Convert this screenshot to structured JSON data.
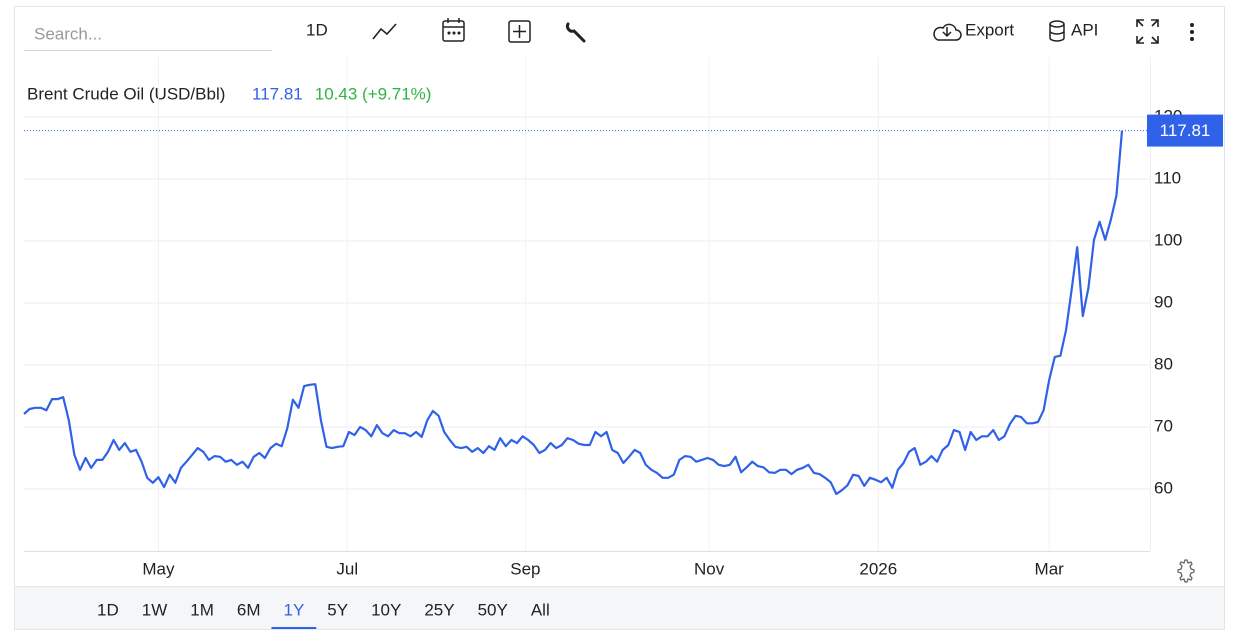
{
  "toolbar": {
    "search_placeholder": "Search...",
    "interval": "1D",
    "export": "Export",
    "api": "API"
  },
  "chart_data": {
    "type": "line",
    "title": "Brent Crude Oil (USD/Bbl)",
    "price": "117.81",
    "change": "10.43 (+9.71%)",
    "color": "#2f62e8",
    "values": [
      72.1,
      72.9,
      73.1,
      73.1,
      72.7,
      74.5,
      74.5,
      74.8,
      71.1,
      65.5,
      63.1,
      65.0,
      63.4,
      64.7,
      64.7,
      66.0,
      67.9,
      66.3,
      67.4,
      66.0,
      66.3,
      64.4,
      61.8,
      61.0,
      61.9,
      60.3,
      62.3,
      61.0,
      63.4,
      64.4,
      65.5,
      66.6,
      66.0,
      64.7,
      65.3,
      65.2,
      64.4,
      64.7,
      63.9,
      64.4,
      63.4,
      65.2,
      65.8,
      65.0,
      66.6,
      67.3,
      66.9,
      69.8,
      74.4,
      73.1,
      76.6,
      76.8,
      76.9,
      71.1,
      66.8,
      66.6,
      66.8,
      66.9,
      69.2,
      68.7,
      70.0,
      69.5,
      68.5,
      70.3,
      69.0,
      68.5,
      69.5,
      69.0,
      69.0,
      68.5,
      69.2,
      68.4,
      71.1,
      72.6,
      71.8,
      69.2,
      67.9,
      66.8,
      66.6,
      66.8,
      66.0,
      66.6,
      65.8,
      66.9,
      66.3,
      68.2,
      66.9,
      67.9,
      67.4,
      68.5,
      67.9,
      67.1,
      65.8,
      66.3,
      67.4,
      66.6,
      67.1,
      68.2,
      67.9,
      67.3,
      67.1,
      67.1,
      69.2,
      68.5,
      69.2,
      66.3,
      65.8,
      64.2,
      65.2,
      66.3,
      65.8,
      63.9,
      63.1,
      62.6,
      61.8,
      61.8,
      62.3,
      64.7,
      65.3,
      65.2,
      64.4,
      64.7,
      65.0,
      64.7,
      63.9,
      63.7,
      63.9,
      65.2,
      62.7,
      63.5,
      64.4,
      63.7,
      63.5,
      62.7,
      62.6,
      63.1,
      63.1,
      62.4,
      63.1,
      63.4,
      63.9,
      62.6,
      62.4,
      61.8,
      61.1,
      59.2,
      59.8,
      60.6,
      62.3,
      62.1,
      60.5,
      61.8,
      61.5,
      61.1,
      61.8,
      60.2,
      63.1,
      64.2,
      66.0,
      66.6,
      63.9,
      64.4,
      65.3,
      64.4,
      66.3,
      67.1,
      69.5,
      69.2,
      66.3,
      69.2,
      67.9,
      68.5,
      68.5,
      69.5,
      67.9,
      68.5,
      70.5,
      71.8,
      71.6,
      70.6,
      70.6,
      70.8,
      72.7,
      77.6,
      81.3,
      81.5,
      85.6,
      92.1,
      99.0,
      87.9,
      92.4,
      100.2,
      103.1,
      100.2,
      103.4,
      107.3,
      117.81
    ],
    "xlim": [
      0,
      196
    ],
    "xticks": [
      {
        "value": 24,
        "label": "May"
      },
      {
        "value": 57.7,
        "label": "Jul"
      },
      {
        "value": 89.5,
        "label": "Sep"
      },
      {
        "value": 122.3,
        "label": "Nov"
      },
      {
        "value": 152.5,
        "label": "2026"
      },
      {
        "value": 183,
        "label": "Mar"
      }
    ],
    "ylim": [
      50,
      120
    ],
    "yticks": [
      60,
      70,
      80,
      90,
      100,
      110,
      120
    ],
    "grid": true
  },
  "ranges": {
    "items": [
      "1D",
      "1W",
      "1M",
      "6M",
      "1Y",
      "5Y",
      "10Y",
      "25Y",
      "50Y",
      "All"
    ],
    "active": 4
  }
}
